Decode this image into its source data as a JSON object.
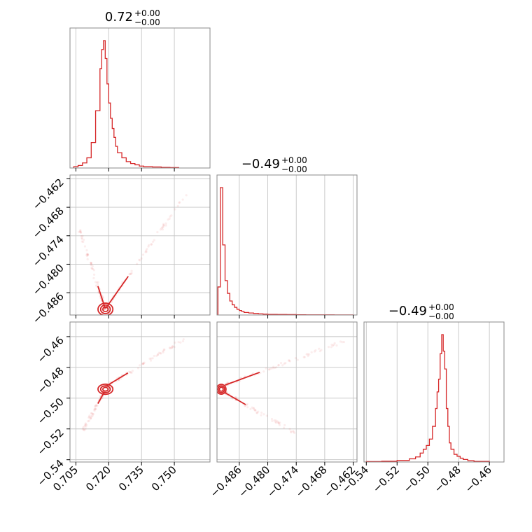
{
  "chart_data": {
    "type": "corner",
    "color": "#d62728",
    "grid": true,
    "parameters": [
      {
        "title_value": "0.72",
        "err_plus": "+0.00",
        "err_minus": "−0.00",
        "ticks": [
          0.705,
          0.72,
          0.735,
          0.75
        ],
        "tick_labels": [
          "0.705",
          "0.720",
          "0.735",
          "0.750"
        ],
        "range": [
          0.7023,
          0.7663
        ]
      },
      {
        "title_value": "−0.49",
        "err_plus": "+0.00",
        "err_minus": "−0.00",
        "ticks": [
          -0.486,
          -0.48,
          -0.474,
          -0.468,
          -0.462
        ],
        "tick_labels": [
          "−0.486",
          "−0.480",
          "−0.474",
          "−0.468",
          "−0.462"
        ],
        "range": [
          -0.4907,
          -0.4612
        ]
      },
      {
        "title_value": "−0.49",
        "err_plus": "+0.00",
        "err_minus": "−0.00",
        "ticks": [
          -0.54,
          -0.52,
          -0.5,
          -0.48,
          -0.46
        ],
        "tick_labels": [
          "−0.54",
          "−0.52",
          "−0.50",
          "−0.48",
          "−0.46"
        ],
        "range": [
          -0.5415,
          -0.4505
        ]
      }
    ],
    "histograms": [
      {
        "param": 0,
        "bin_edges": [
          0.704,
          0.706,
          0.708,
          0.71,
          0.712,
          0.714,
          0.716,
          0.7168,
          0.7176,
          0.7184,
          0.7192,
          0.72,
          0.7208,
          0.7216,
          0.7224,
          0.7232,
          0.724,
          0.726,
          0.728,
          0.73,
          0.732,
          0.734,
          0.736,
          0.74,
          0.744,
          0.748,
          0.752
        ],
        "density": [
          0.01,
          0.02,
          0.04,
          0.08,
          0.2,
          0.45,
          0.78,
          0.93,
          1.0,
          0.86,
          0.66,
          0.51,
          0.39,
          0.31,
          0.24,
          0.17,
          0.12,
          0.08,
          0.05,
          0.035,
          0.025,
          0.015,
          0.01,
          0.008,
          0.005,
          0.003
        ]
      },
      {
        "param": 1,
        "bin_edges": [
          -0.4905,
          -0.49,
          -0.4895,
          -0.489,
          -0.4885,
          -0.488,
          -0.4875,
          -0.487,
          -0.4865,
          -0.486,
          -0.4855,
          -0.485,
          -0.484,
          -0.483,
          -0.482,
          -0.481,
          -0.48,
          -0.478,
          -0.476,
          -0.474,
          -0.472,
          -0.47,
          -0.468,
          -0.466,
          -0.464,
          -0.462
        ],
        "density": [
          0.22,
          1.0,
          0.55,
          0.27,
          0.17,
          0.11,
          0.08,
          0.06,
          0.045,
          0.035,
          0.028,
          0.02,
          0.016,
          0.012,
          0.009,
          0.007,
          0.005,
          0.004,
          0.003,
          0.002,
          0.0015,
          0.001,
          0.001,
          0.0005,
          0.0005
        ]
      },
      {
        "param": 2,
        "bin_edges": [
          -0.54,
          -0.53,
          -0.52,
          -0.512,
          -0.508,
          -0.505,
          -0.503,
          -0.501,
          -0.499,
          -0.497,
          -0.495,
          -0.494,
          -0.493,
          -0.492,
          -0.491,
          -0.49,
          -0.489,
          -0.488,
          -0.487,
          -0.486,
          -0.485,
          -0.483,
          -0.481,
          -0.479,
          -0.477,
          -0.474,
          -0.47,
          -0.46
        ],
        "density": [
          0.003,
          0.006,
          0.012,
          0.025,
          0.04,
          0.07,
          0.1,
          0.13,
          0.18,
          0.28,
          0.42,
          0.55,
          0.65,
          0.85,
          1.0,
          0.87,
          0.73,
          0.42,
          0.28,
          0.15,
          0.1,
          0.06,
          0.045,
          0.03,
          0.02,
          0.01,
          0.005
        ]
      }
    ],
    "pairs": [
      {
        "x_param": 0,
        "y_param": 1,
        "contour_center": [
          0.7185,
          -0.4895
        ],
        "contour_levels": [
          [
            0.0012,
            0.0005
          ],
          [
            0.0022,
            0.0009
          ],
          [
            0.0034,
            0.0013
          ]
        ],
        "arms": [
          {
            "from": [
              0.7186,
              -0.4893
            ],
            "to": [
              0.7555,
              -0.4652
            ]
          },
          {
            "from": [
              0.7184,
              -0.4893
            ],
            "to": [
              0.7065,
              -0.4726
            ]
          }
        ]
      },
      {
        "x_param": 0,
        "y_param": 2,
        "contour_center": [
          0.7185,
          -0.4942
        ],
        "contour_levels": [
          [
            0.0012,
            0.0012
          ],
          [
            0.0022,
            0.0022
          ],
          [
            0.0034,
            0.0033
          ]
        ],
        "arms": [
          {
            "from": [
              0.719,
              -0.492
            ],
            "to": [
              0.754,
              -0.462
            ]
          },
          {
            "from": [
              0.718,
              -0.496
            ],
            "to": [
              0.7075,
              -0.523
            ]
          }
        ]
      },
      {
        "x_param": 1,
        "y_param": 2,
        "contour_center": [
          -0.4898,
          -0.4942
        ],
        "contour_levels": [
          [
            0.0004,
            0.0013
          ],
          [
            0.0007,
            0.0022
          ],
          [
            0.001,
            0.0032
          ]
        ],
        "arms": [
          {
            "from": [
              -0.489,
              -0.4915
            ],
            "to": [
              -0.463,
              -0.462
            ]
          },
          {
            "from": [
              -0.489,
              -0.4965
            ],
            "to": [
              -0.4735,
              -0.524
            ]
          }
        ]
      }
    ]
  }
}
